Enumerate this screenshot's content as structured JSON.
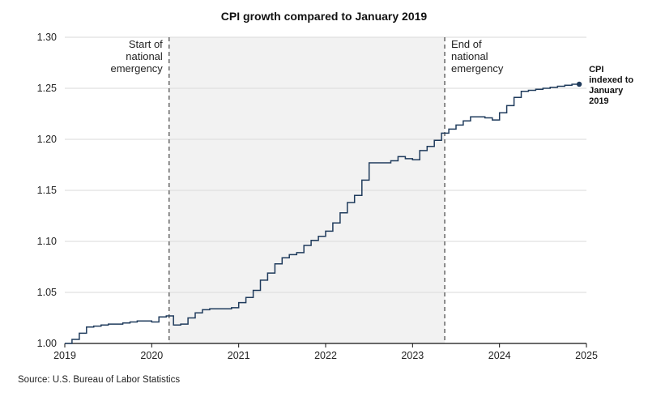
{
  "chart_data": {
    "type": "line",
    "title": "CPI growth compared to January 2019",
    "xlabel": "",
    "ylabel": "",
    "xlim": [
      2019,
      2025
    ],
    "ylim": [
      1.0,
      1.3
    ],
    "grid": true,
    "y_ticks": [
      1.0,
      1.05,
      1.1,
      1.15,
      1.2,
      1.25,
      1.3
    ],
    "y_tick_labels": [
      "1.00",
      "1.05",
      "1.10",
      "1.15",
      "1.20",
      "1.25",
      "1.30"
    ],
    "x_ticks": [
      2019,
      2020,
      2021,
      2022,
      2023,
      2024,
      2025
    ],
    "x_tick_labels": [
      "2019",
      "2020",
      "2021",
      "2022",
      "2023",
      "2024",
      "2025"
    ],
    "shaded_region": {
      "start": 2020.2,
      "end": 2023.37,
      "color": "#f2f2f2"
    },
    "annotations": [
      {
        "x": 2020.2,
        "lines": [
          "Start of",
          "national",
          "emergency"
        ],
        "side": "left"
      },
      {
        "x": 2023.37,
        "lines": [
          "End of",
          "national",
          "emergency"
        ],
        "side": "right"
      }
    ],
    "series": [
      {
        "name": "CPI indexed to January 2019",
        "label_lines": [
          "CPI",
          "indexed to",
          "January",
          "2019"
        ],
        "color": "#1f3b5c",
        "step": true,
        "x": [
          2019.0,
          2019.083,
          2019.167,
          2019.25,
          2019.333,
          2019.417,
          2019.5,
          2019.583,
          2019.667,
          2019.75,
          2019.833,
          2019.917,
          2020.0,
          2020.083,
          2020.167,
          2020.25,
          2020.333,
          2020.417,
          2020.5,
          2020.583,
          2020.667,
          2020.75,
          2020.833,
          2020.917,
          2021.0,
          2021.083,
          2021.167,
          2021.25,
          2021.333,
          2021.417,
          2021.5,
          2021.583,
          2021.667,
          2021.75,
          2021.833,
          2021.917,
          2022.0,
          2022.083,
          2022.167,
          2022.25,
          2022.333,
          2022.417,
          2022.5,
          2022.583,
          2022.667,
          2022.75,
          2022.833,
          2022.917,
          2023.0,
          2023.083,
          2023.167,
          2023.25,
          2023.333,
          2023.417,
          2023.5,
          2023.583,
          2023.667,
          2023.75,
          2023.833,
          2023.917,
          2024.0,
          2024.083,
          2024.167,
          2024.25,
          2024.333,
          2024.417,
          2024.5,
          2024.583,
          2024.667,
          2024.75,
          2024.833,
          2024.917
        ],
        "values": [
          1.0,
          1.004,
          1.01,
          1.016,
          1.017,
          1.018,
          1.019,
          1.019,
          1.02,
          1.021,
          1.022,
          1.022,
          1.021,
          1.026,
          1.027,
          1.018,
          1.019,
          1.025,
          1.03,
          1.033,
          1.034,
          1.034,
          1.034,
          1.035,
          1.04,
          1.045,
          1.052,
          1.062,
          1.069,
          1.078,
          1.084,
          1.087,
          1.089,
          1.096,
          1.101,
          1.105,
          1.11,
          1.118,
          1.128,
          1.138,
          1.145,
          1.16,
          1.177,
          1.177,
          1.177,
          1.179,
          1.183,
          1.181,
          1.18,
          1.189,
          1.193,
          1.199,
          1.206,
          1.21,
          1.214,
          1.218,
          1.222,
          1.222,
          1.221,
          1.219,
          1.226,
          1.233,
          1.241,
          1.247,
          1.248,
          1.249,
          1.25,
          1.251,
          1.252,
          1.253,
          1.254,
          1.254
        ]
      }
    ]
  },
  "source": "Source: U.S. Bureau of Labor Statistics"
}
